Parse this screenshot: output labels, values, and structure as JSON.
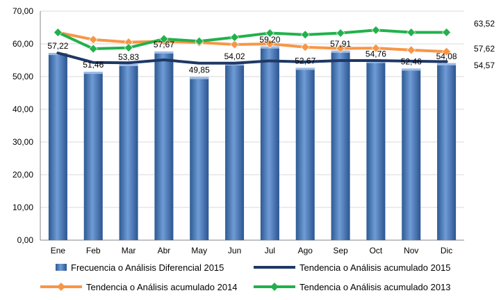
{
  "chart_data": {
    "type": "bar",
    "title": "",
    "xlabel": "",
    "ylabel": "",
    "ylim": [
      0,
      70
    ],
    "yticks": [
      "0,00",
      "10,00",
      "20,00",
      "30,00",
      "40,00",
      "50,00",
      "60,00",
      "70,00"
    ],
    "categories": [
      "Ene",
      "Feb",
      "Mar",
      "Abr",
      "May",
      "Jun",
      "Jul",
      "Ago",
      "Sep",
      "Oct",
      "Nov",
      "Dic"
    ],
    "grid": "horizontal",
    "legend_position": "bottom",
    "series": [
      {
        "name": "Frecuencia o Análisis Diferencial 2015",
        "kind": "bar",
        "color": "#4F81BD",
        "values": [
          57.22,
          51.46,
          53.83,
          57.67,
          49.85,
          54.02,
          59.2,
          52.67,
          57.91,
          54.76,
          52.46,
          54.08
        ],
        "labels": [
          "57,22",
          "51,46",
          "53,83",
          "57,67",
          "49,85",
          "54,02",
          "59,20",
          "52,67",
          "57,91",
          "54,76",
          "52,46",
          "54,08"
        ]
      },
      {
        "name": "Tendencia o Análisis acumulado 2015",
        "kind": "line",
        "color": "#1F3864",
        "marker": "none",
        "values": [
          57.2,
          54.3,
          54.2,
          55.1,
          54.1,
          54.1,
          54.8,
          54.5,
          54.9,
          54.9,
          54.7,
          54.57
        ],
        "end_label": "54,57"
      },
      {
        "name": "Tendencia o Análisis acumulado 2014",
        "kind": "line",
        "color": "#F79646",
        "marker": "diamond",
        "values": [
          63.5,
          61.3,
          60.5,
          60.8,
          60.4,
          59.8,
          60.0,
          59.0,
          58.6,
          58.7,
          58.1,
          57.62
        ],
        "end_label": "57,62"
      },
      {
        "name": "Tendencia o Análisis acumulado 2013",
        "kind": "line",
        "color": "#22B14C",
        "marker": "diamond",
        "values": [
          63.5,
          58.5,
          58.8,
          61.5,
          60.8,
          62.0,
          63.3,
          62.8,
          63.3,
          64.2,
          63.5,
          63.52
        ],
        "end_label": "63,52"
      }
    ]
  }
}
